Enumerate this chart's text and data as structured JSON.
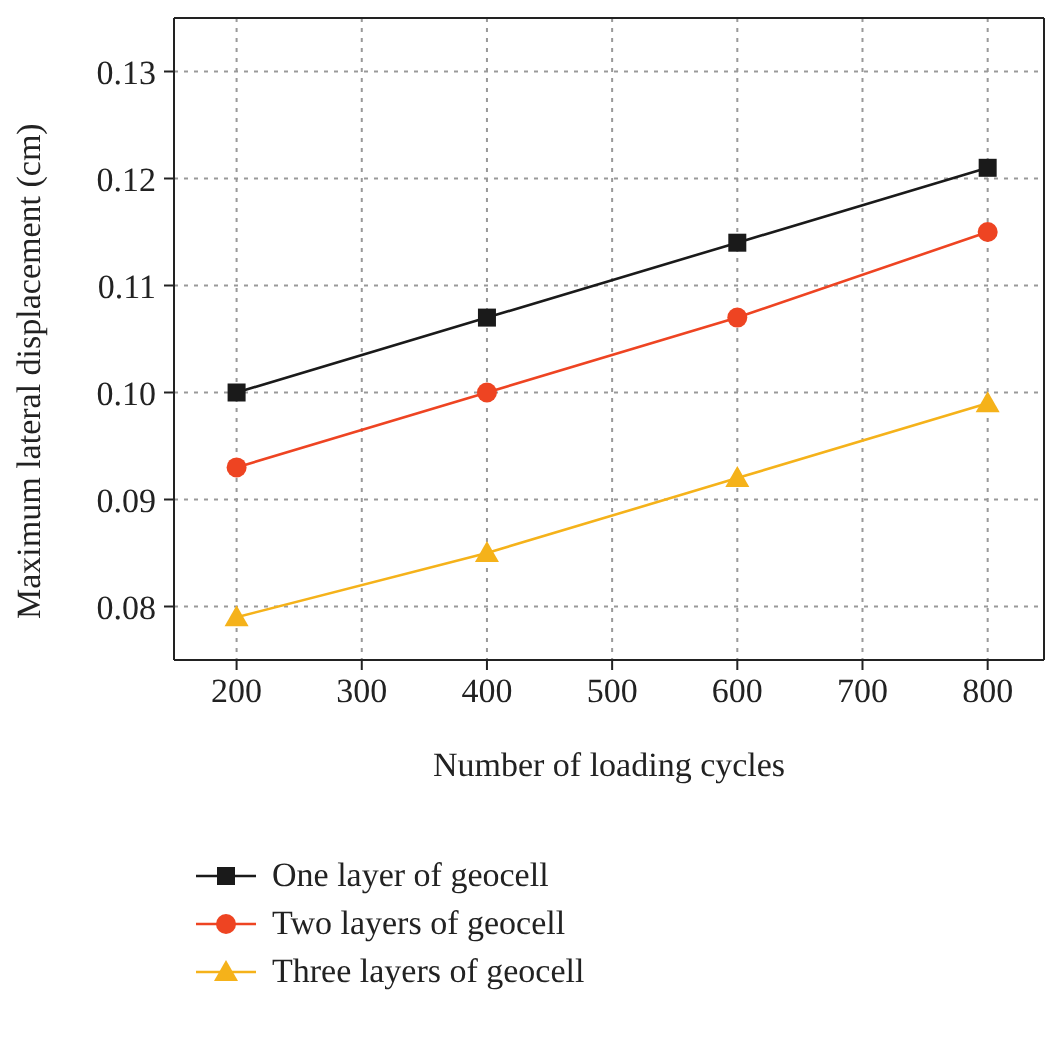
{
  "chart_data": {
    "type": "line",
    "xlabel": "Number of loading cycles",
    "ylabel": "Maximum lateral displacement (cm)",
    "x": [
      200,
      400,
      600,
      800
    ],
    "series": [
      {
        "name": "One layer of geocell",
        "color": "#1a1a1a",
        "marker": "square",
        "values": [
          0.1,
          0.107,
          0.114,
          0.121
        ]
      },
      {
        "name": "Two layers of geocell",
        "color": "#ee4422",
        "marker": "circle",
        "values": [
          0.093,
          0.1,
          0.107,
          0.115
        ]
      },
      {
        "name": "Three layers of geocell",
        "color": "#f5b21a",
        "marker": "triangle",
        "values": [
          0.079,
          0.085,
          0.092,
          0.099
        ]
      }
    ],
    "xlim": [
      150,
      845
    ],
    "xticks": [
      200,
      300,
      400,
      500,
      600,
      700,
      800
    ],
    "ylim": [
      0.075,
      0.135
    ],
    "yticks": [
      {
        "value": 0.08,
        "label": "0.08"
      },
      {
        "value": 0.09,
        "label": "0.09"
      },
      {
        "value": 0.1,
        "label": "0.10"
      },
      {
        "value": 0.11,
        "label": "0.11"
      },
      {
        "value": 0.12,
        "label": "0.12"
      },
      {
        "value": 0.13,
        "label": "0.13"
      }
    ],
    "grid": true,
    "legend": "bottom",
    "line_style": "solid"
  }
}
